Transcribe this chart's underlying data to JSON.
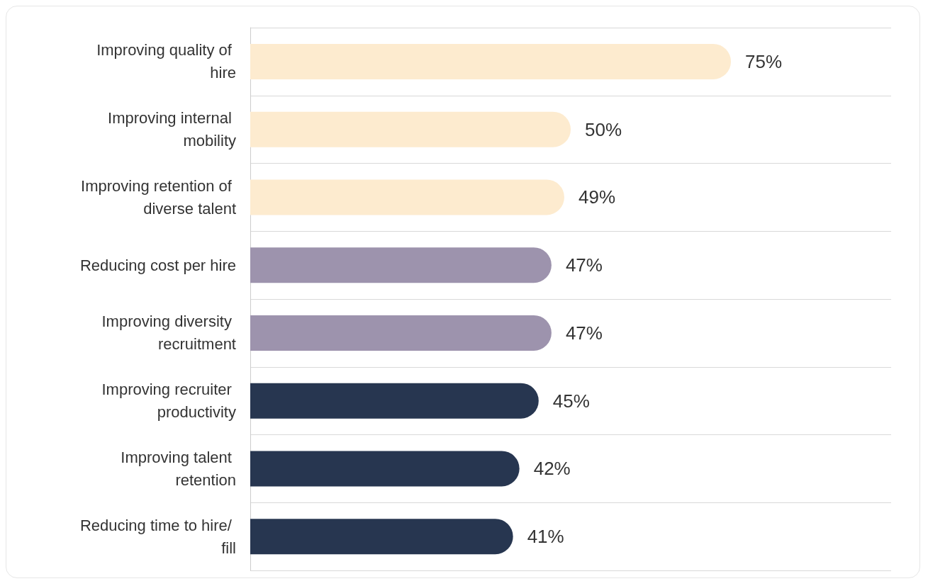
{
  "chart_data": {
    "type": "bar",
    "orientation": "horizontal",
    "categories": [
      "Improving quality of hire",
      "Improving internal mobility",
      "Improving retention of diverse talent",
      "Reducing cost per hire",
      "Improving diversity recruitment",
      "Improving recruiter productivity",
      "Improving talent retention",
      "Reducing time to hire/ fill"
    ],
    "values": [
      75,
      50,
      49,
      47,
      47,
      45,
      42,
      41
    ],
    "colors": [
      "#fdebcf",
      "#fdebcf",
      "#fdebcf",
      "#9d93ad",
      "#9d93ad",
      "#273650",
      "#273650",
      "#273650"
    ],
    "value_labels": [
      "75%",
      "50%",
      "49%",
      "47%",
      "47%",
      "45%",
      "42%",
      "41%"
    ],
    "xlim": [
      0,
      100
    ],
    "tick_labels": "y",
    "grid": "y"
  }
}
